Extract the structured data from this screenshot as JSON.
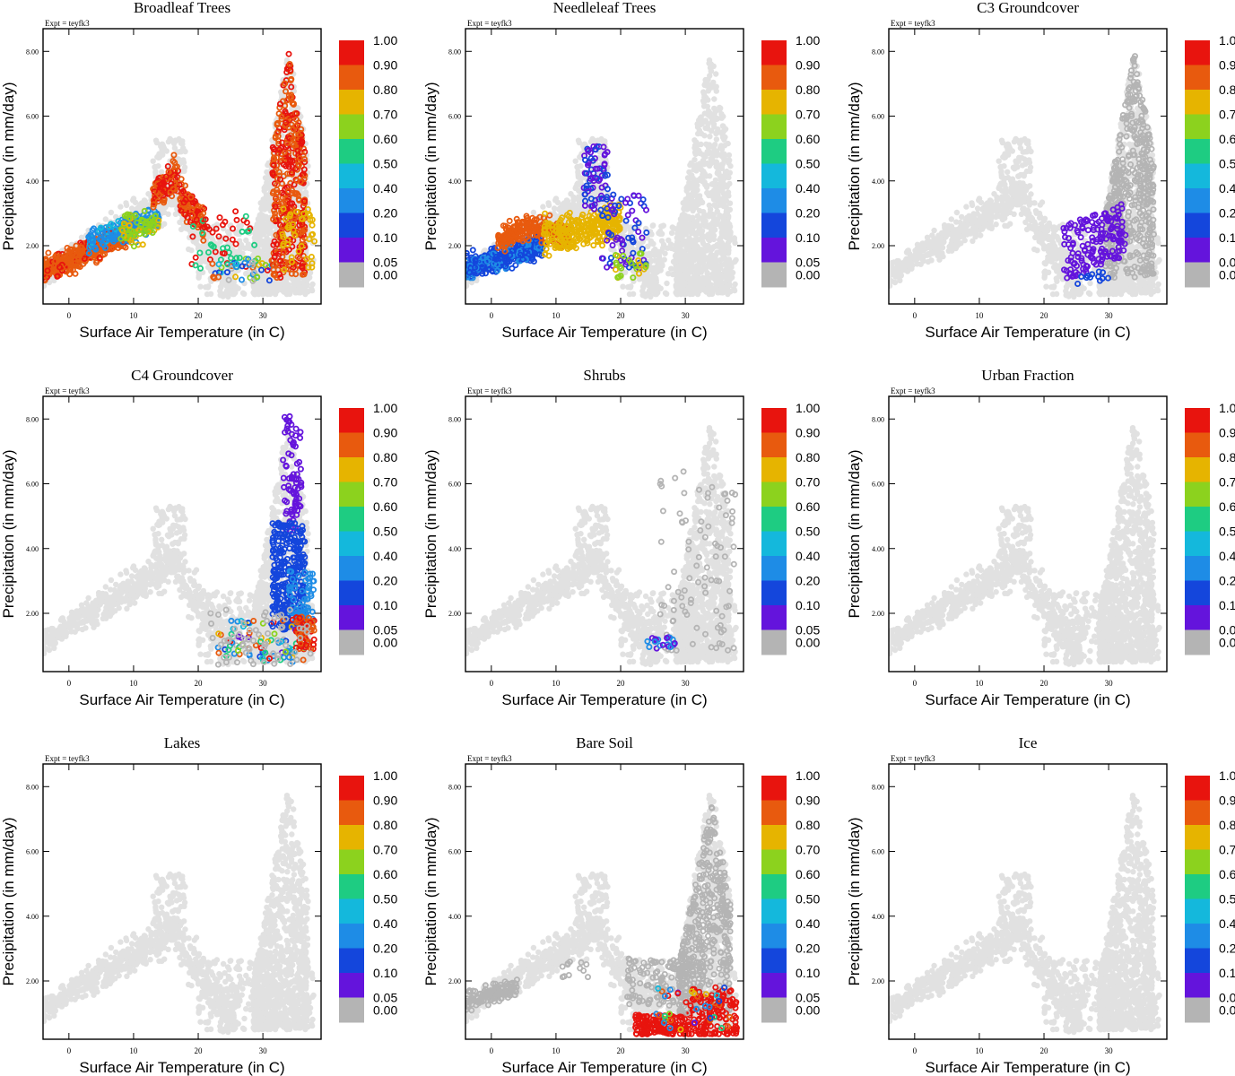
{
  "figure": {
    "expt_label": "Expt = teyfk3",
    "xlabel": "Surface Air Temperature (in C)",
    "ylabel": "Precipitation (in mm/day)"
  },
  "chart_data": [
    {
      "type": "scatter",
      "title": "Broadleaf Trees",
      "key": "broadleaf",
      "xlim": [
        -4,
        39
      ],
      "ylim": [
        0.2,
        8.7
      ],
      "xticks": [
        0,
        10,
        20,
        30
      ],
      "yticks": [
        2,
        4,
        6,
        8
      ]
    },
    {
      "type": "scatter",
      "title": "Needleleaf Trees",
      "key": "needleleaf",
      "xlim": [
        -4,
        39
      ],
      "ylim": [
        0.2,
        8.7
      ],
      "xticks": [
        0,
        10,
        20,
        30
      ],
      "yticks": [
        2,
        4,
        6,
        8
      ]
    },
    {
      "type": "scatter",
      "title": "C3 Groundcover",
      "key": "c3",
      "xlim": [
        -4,
        39
      ],
      "ylim": [
        0.2,
        8.7
      ],
      "xticks": [
        0,
        10,
        20,
        30
      ],
      "yticks": [
        2,
        4,
        6,
        8
      ]
    },
    {
      "type": "scatter",
      "title": "C4 Groundcover",
      "key": "c4",
      "xlim": [
        -4,
        39
      ],
      "ylim": [
        0.2,
        8.7
      ],
      "xticks": [
        0,
        10,
        20,
        30
      ],
      "yticks": [
        2,
        4,
        6,
        8
      ]
    },
    {
      "type": "scatter",
      "title": "Shrubs",
      "key": "shrubs",
      "xlim": [
        -4,
        39
      ],
      "ylim": [
        0.2,
        8.7
      ],
      "xticks": [
        0,
        10,
        20,
        30
      ],
      "yticks": [
        2,
        4,
        6,
        8
      ]
    },
    {
      "type": "scatter",
      "title": "Urban Fraction",
      "key": "urban",
      "xlim": [
        -4,
        39
      ],
      "ylim": [
        0.2,
        8.7
      ],
      "xticks": [
        0,
        10,
        20,
        30
      ],
      "yticks": [
        2,
        4,
        6,
        8
      ]
    },
    {
      "type": "scatter",
      "title": "Lakes",
      "key": "lakes",
      "xlim": [
        -4,
        39
      ],
      "ylim": [
        0.2,
        8.7
      ],
      "xticks": [
        0,
        10,
        20,
        30
      ],
      "yticks": [
        2,
        4,
        6,
        8
      ]
    },
    {
      "type": "scatter",
      "title": "Bare Soil",
      "key": "baresoil",
      "xlim": [
        -4,
        39
      ],
      "ylim": [
        0.2,
        8.7
      ],
      "xticks": [
        0,
        10,
        20,
        30
      ],
      "yticks": [
        2,
        4,
        6,
        8
      ]
    },
    {
      "type": "scatter",
      "title": "Ice",
      "key": "ice",
      "xlim": [
        -4,
        39
      ],
      "ylim": [
        0.2,
        8.7
      ],
      "xticks": [
        0,
        10,
        20,
        30
      ],
      "yticks": [
        2,
        4,
        6,
        8
      ]
    }
  ],
  "colorbar": {
    "labels": [
      "1.00",
      "0.90",
      "0.80",
      "0.70",
      "0.60",
      "0.50",
      "0.40",
      "0.20",
      "0.10",
      "0.05",
      "0.00"
    ],
    "colors": [
      "#e8140e",
      "#e85a0e",
      "#e6b400",
      "#8cd21e",
      "#1ecc82",
      "#14b8dc",
      "#1e8ce6",
      "#1446dc",
      "#6414dc",
      "#b4b4b4"
    ],
    "background_color": "#e1e1e1"
  }
}
